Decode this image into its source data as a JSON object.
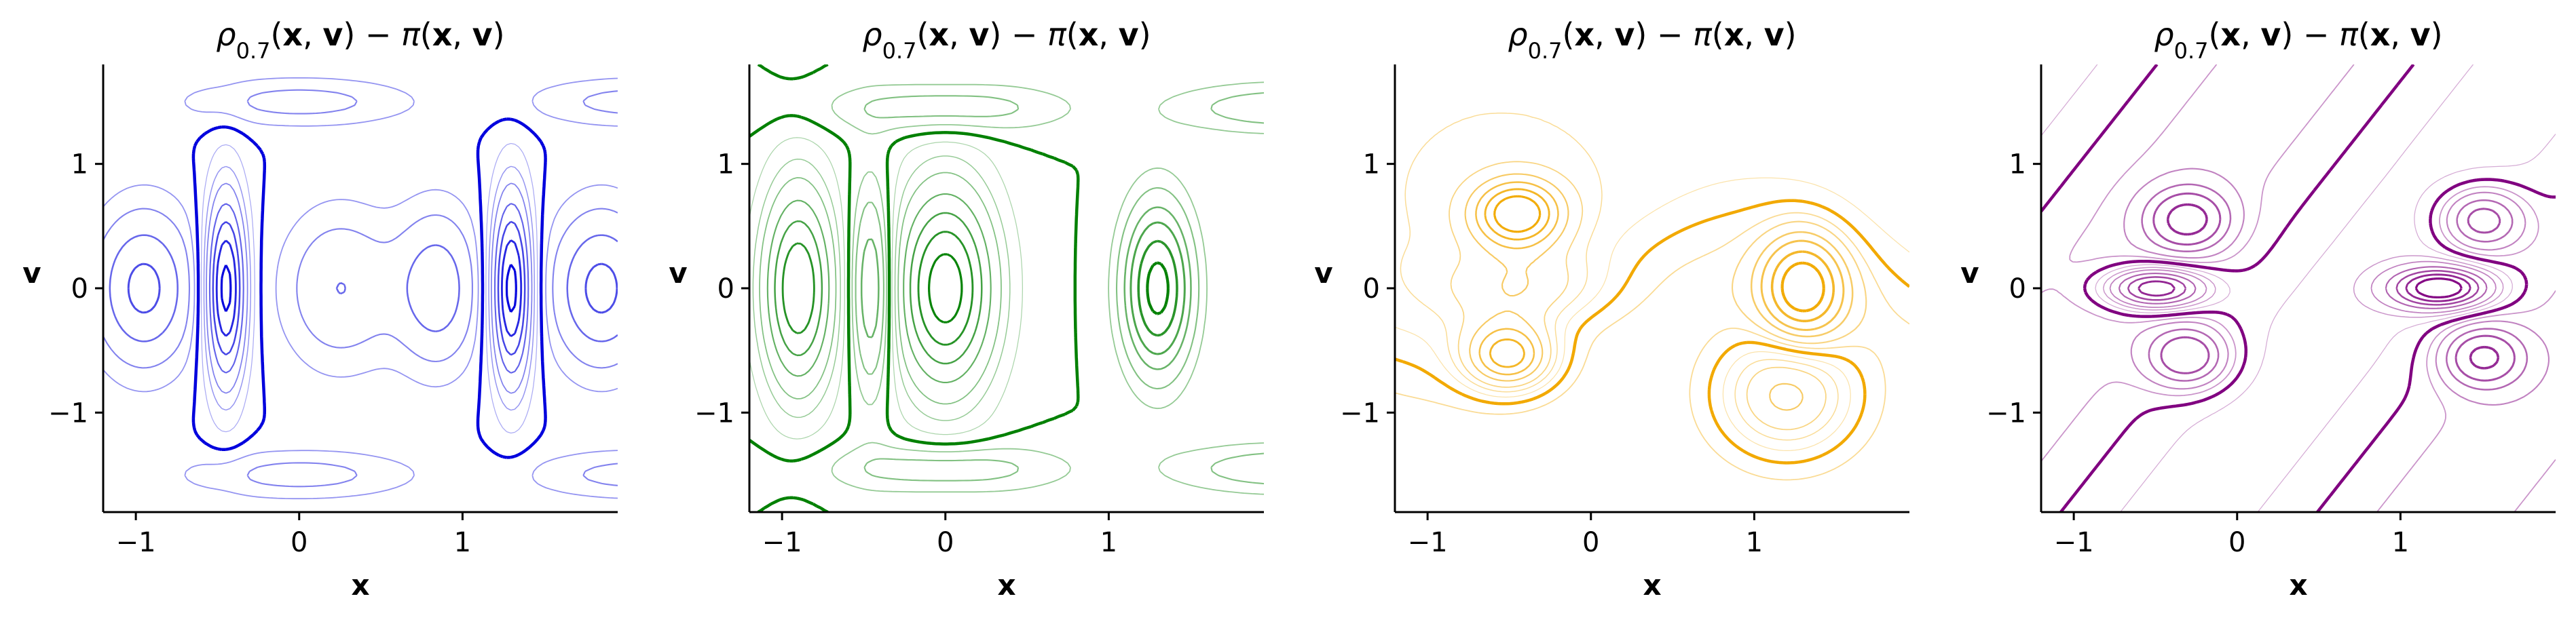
{
  "figure": {
    "panels": [
      {
        "title": "ρ0.7(x, v) − π(x, v)",
        "color": "#0000dd",
        "xlabel": "x",
        "ylabel": "v"
      },
      {
        "title": "ρ0.7(x, v) − π(x, v)",
        "color": "#008000",
        "xlabel": "x",
        "ylabel": "v"
      },
      {
        "title": "ρ0.7(x, v) − π(x, v)",
        "color": "#f2a900",
        "xlabel": "x",
        "ylabel": "v"
      },
      {
        "title": "ρ0.7(x, v) − π(x, v)",
        "color": "#800080",
        "xlabel": "x",
        "ylabel": "v"
      }
    ]
  },
  "chart_data": [
    {
      "type": "contour",
      "title": "ρ0.7(x, v) − π(x, v)",
      "xlabel": "x",
      "ylabel": "v",
      "xlim": [
        -1.2,
        1.95
      ],
      "ylim": [
        -1.8,
        1.8
      ],
      "xticks": [
        -1,
        0,
        1
      ],
      "yticks": [
        -1,
        0,
        1
      ],
      "color": "#0000dd",
      "features": [
        {
          "kind": "positive-peak",
          "x": -0.45,
          "y": 0.0
        },
        {
          "kind": "positive-peak",
          "x": 1.3,
          "y": 0.0
        },
        {
          "kind": "negative-basin",
          "x": -0.95,
          "y": 0.0
        },
        {
          "kind": "negative-basin",
          "x": 0.2,
          "y": 0.0
        },
        {
          "kind": "negative-basin",
          "x": 0.9,
          "y": 0.0
        },
        {
          "kind": "negative-basin",
          "x": 1.8,
          "y": 0.0
        }
      ]
    },
    {
      "type": "contour",
      "title": "ρ0.7(x, v) − π(x, v)",
      "xlabel": "x",
      "ylabel": "v",
      "xlim": [
        -1.2,
        1.95
      ],
      "ylim": [
        -1.8,
        1.8
      ],
      "xticks": [
        -1,
        0,
        1
      ],
      "yticks": [
        -1,
        0,
        1
      ],
      "color": "#008000",
      "features": [
        {
          "kind": "positive-peak",
          "x": -0.9,
          "y": 0.0
        },
        {
          "kind": "positive-peak",
          "x": 0.0,
          "y": 0.0
        },
        {
          "kind": "negative-basin",
          "x": -0.45,
          "y": 0.0
        },
        {
          "kind": "negative-basin",
          "x": 1.3,
          "y": 0.0
        }
      ]
    },
    {
      "type": "contour",
      "title": "ρ0.7(x, v) − π(x, v)",
      "xlabel": "x",
      "ylabel": "v",
      "xlim": [
        -1.2,
        1.95
      ],
      "ylim": [
        -1.8,
        1.8
      ],
      "xticks": [
        -1,
        0,
        1
      ],
      "yticks": [
        -1,
        0,
        1
      ],
      "color": "#f2a900",
      "features": [
        {
          "kind": "positive-peak",
          "x": -0.45,
          "y": 0.6
        },
        {
          "kind": "positive-peak",
          "x": -0.5,
          "y": -0.55
        },
        {
          "kind": "negative-basin",
          "x": 1.3,
          "y": 0.0
        },
        {
          "kind": "positive-peak",
          "x": 1.2,
          "y": -0.85
        }
      ]
    },
    {
      "type": "contour",
      "title": "ρ0.7(x, v) − π(x, v)",
      "xlabel": "x",
      "ylabel": "v",
      "xlim": [
        -1.2,
        1.95
      ],
      "ylim": [
        -1.8,
        1.8
      ],
      "xticks": [
        -1,
        0,
        1
      ],
      "yticks": [
        -1,
        0,
        1
      ],
      "color": "#800080",
      "features": [
        {
          "kind": "positive-peak",
          "x": -0.5,
          "y": 0.0
        },
        {
          "kind": "positive-peak",
          "x": 1.25,
          "y": 0.0
        },
        {
          "kind": "negative-basin",
          "x": -0.3,
          "y": 0.55
        },
        {
          "kind": "negative-basin",
          "x": -0.3,
          "y": -0.55
        },
        {
          "kind": "negative-basin",
          "x": 1.5,
          "y": 0.55
        },
        {
          "kind": "negative-basin",
          "x": 1.5,
          "y": -0.55
        }
      ]
    }
  ]
}
